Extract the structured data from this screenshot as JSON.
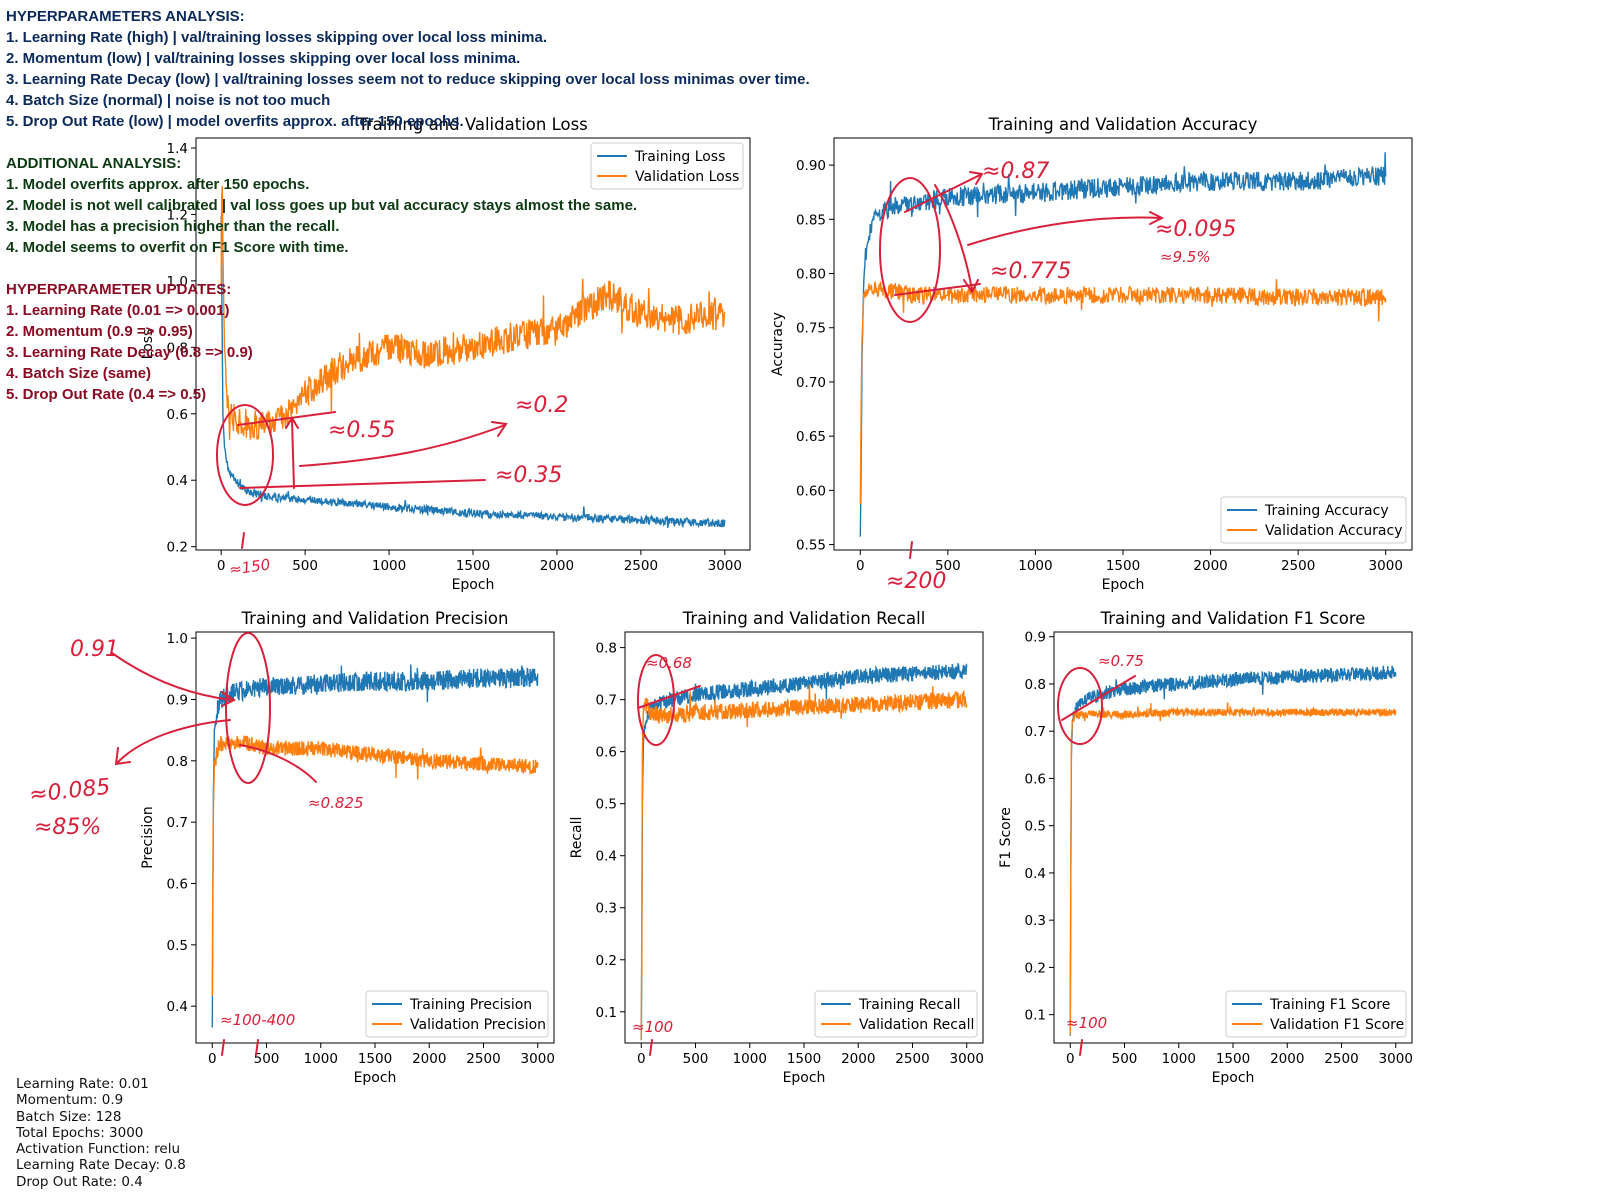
{
  "notes": {
    "analysis": {
      "heading": "HYPERPARAMETERS ANALYSIS:",
      "color": "#0b2a5b",
      "lines": [
        "1. Learning Rate (high) | val/training losses skipping over local loss minima.",
        "2. Momentum (low) | val/training losses skipping over local loss minima.",
        "3. Learning Rate Decay (low) | val/training losses seem not to reduce skipping over local loss minimas over time.",
        "4. Batch Size (normal) | noise is not too much",
        "5. Drop Out Rate (low) | model overfits approx. after 150 epochs."
      ]
    },
    "additional": {
      "heading": "ADDITIONAL ANALYSIS:",
      "color": "#0d3a12",
      "lines": [
        "1. Model overfits approx. after 150 epochs.",
        "2. Model is not well calibrated | val loss goes up but val accuracy stays almost the same.",
        "3. Model has a precision higher than the recall.",
        "4. Model seems to overfit on F1 Score with time."
      ]
    },
    "updates": {
      "heading": "HYPERPARAMETER UPDATES:",
      "color": "#8a0b22",
      "lines": [
        "1. Learning Rate (0.01 => 0.001)",
        "2. Momentum (0.9 => 0.95)",
        "3. Learning Rate Decay (0.8 => 0.9)",
        "4. Batch Size (same)",
        "5. Drop Out Rate (0.4 => 0.5)"
      ]
    }
  },
  "params": [
    "Learning Rate: 0.01",
    "Momentum: 0.9",
    "Batch Size: 128",
    "Total Epochs: 3000",
    "Activation Function: relu",
    "Learning Rate Decay: 0.8",
    "Drop Out Rate: 0.4"
  ],
  "colors": {
    "training": "#1f77b4",
    "validation": "#ff7f0e",
    "annotation": "#d9203a"
  },
  "chart_data": [
    {
      "type": "line",
      "title": "Training and Validation Loss",
      "xlabel": "Epoch",
      "ylabel": "Loss",
      "xlim": [
        -150,
        3150
      ],
      "ylim": [
        0.19,
        1.43
      ],
      "xticks": [
        0,
        500,
        1000,
        1500,
        2000,
        2500,
        3000
      ],
      "yticks": [
        0.2,
        0.4,
        0.6,
        0.8,
        1.0,
        1.2,
        1.4
      ],
      "legend": "upper right",
      "grid": false,
      "series": [
        {
          "name": "Training Loss",
          "x": [
            0,
            5,
            10,
            20,
            40,
            60,
            100,
            150,
            200,
            300,
            500,
            750,
            1000,
            1500,
            2000,
            2500,
            3000
          ],
          "y": [
            1.2,
            0.9,
            0.6,
            0.5,
            0.44,
            0.41,
            0.39,
            0.37,
            0.36,
            0.35,
            0.34,
            0.33,
            0.32,
            0.3,
            0.29,
            0.28,
            0.27
          ],
          "noise": 0.012
        },
        {
          "name": "Validation Loss",
          "x": [
            0,
            5,
            10,
            20,
            40,
            80,
            150,
            250,
            400,
            500,
            700,
            1000,
            1200,
            1500,
            1800,
            2000,
            2200,
            2300,
            2500,
            2700,
            3000
          ],
          "y": [
            1.0,
            1.36,
            1.1,
            0.8,
            0.65,
            0.58,
            0.57,
            0.56,
            0.6,
            0.66,
            0.74,
            0.8,
            0.78,
            0.8,
            0.84,
            0.85,
            0.92,
            0.96,
            0.9,
            0.88,
            0.9
          ],
          "noise": 0.045
        }
      ],
      "annotations": [
        "≈0.55",
        "≈0.2",
        "≈0.35",
        "≈150"
      ]
    },
    {
      "type": "line",
      "title": "Training and Validation Accuracy",
      "xlabel": "Epoch",
      "ylabel": "Accuracy",
      "xlim": [
        -150,
        3150
      ],
      "ylim": [
        0.545,
        0.925
      ],
      "xticks": [
        0,
        500,
        1000,
        1500,
        2000,
        2500,
        3000
      ],
      "yticks": [
        0.55,
        0.6,
        0.65,
        0.7,
        0.75,
        0.8,
        0.85,
        0.9
      ],
      "legend": "lower right",
      "grid": false,
      "series": [
        {
          "name": "Training Accuracy",
          "x": [
            0,
            5,
            10,
            20,
            40,
            80,
            150,
            300,
            500,
            1000,
            1500,
            2000,
            2500,
            3000
          ],
          "y": [
            0.56,
            0.62,
            0.72,
            0.8,
            0.83,
            0.85,
            0.86,
            0.865,
            0.87,
            0.875,
            0.88,
            0.885,
            0.885,
            0.89
          ],
          "noise": 0.009
        },
        {
          "name": "Validation Accuracy",
          "x": [
            0,
            5,
            10,
            20,
            40,
            80,
            150,
            300,
            500,
            1000,
            1500,
            2000,
            2500,
            3000
          ],
          "y": [
            0.59,
            0.68,
            0.74,
            0.78,
            0.785,
            0.785,
            0.785,
            0.78,
            0.78,
            0.78,
            0.78,
            0.78,
            0.778,
            0.778
          ],
          "noise": 0.008
        }
      ],
      "annotations": [
        "≈0.87",
        "≈0.095",
        "≈9.5%",
        "≈0.775",
        "≈200"
      ]
    },
    {
      "type": "line",
      "title": "Training and Validation Precision",
      "xlabel": "Epoch",
      "ylabel": "Precision",
      "xlim": [
        -150,
        3150
      ],
      "ylim": [
        0.34,
        1.01
      ],
      "xticks": [
        0,
        500,
        1000,
        1500,
        2000,
        2500,
        3000
      ],
      "yticks": [
        0.4,
        0.5,
        0.6,
        0.7,
        0.8,
        0.9,
        1.0
      ],
      "legend": "lower right",
      "grid": false,
      "series": [
        {
          "name": "Training Precision",
          "x": [
            0,
            5,
            10,
            20,
            40,
            80,
            150,
            300,
            500,
            1000,
            1500,
            2000,
            2500,
            3000
          ],
          "y": [
            0.37,
            0.55,
            0.75,
            0.85,
            0.88,
            0.9,
            0.91,
            0.915,
            0.92,
            0.925,
            0.93,
            0.93,
            0.935,
            0.935
          ],
          "noise": 0.016
        },
        {
          "name": "Validation Precision",
          "x": [
            0,
            5,
            10,
            20,
            40,
            80,
            150,
            300,
            500,
            1000,
            1500,
            2000,
            2500,
            3000
          ],
          "y": [
            0.42,
            0.6,
            0.72,
            0.8,
            0.815,
            0.825,
            0.83,
            0.83,
            0.82,
            0.82,
            0.81,
            0.8,
            0.795,
            0.79
          ],
          "noise": 0.012
        }
      ],
      "annotations": [
        "0.91",
        "≈0.085",
        "≈85%",
        "≈0.825",
        "≈100-400"
      ]
    },
    {
      "type": "line",
      "title": "Training and Validation Recall",
      "xlabel": "Epoch",
      "ylabel": "Recall",
      "xlim": [
        -150,
        3150
      ],
      "ylim": [
        0.04,
        0.83
      ],
      "xticks": [
        0,
        500,
        1000,
        1500,
        2000,
        2500,
        3000
      ],
      "yticks": [
        0.1,
        0.2,
        0.3,
        0.4,
        0.5,
        0.6,
        0.7,
        0.8
      ],
      "legend": "lower right",
      "grid": false,
      "series": [
        {
          "name": "Training Recall",
          "x": [
            0,
            5,
            10,
            20,
            40,
            80,
            150,
            300,
            500,
            1000,
            1500,
            2000,
            2500,
            3000
          ],
          "y": [
            0.05,
            0.2,
            0.5,
            0.62,
            0.66,
            0.68,
            0.69,
            0.7,
            0.71,
            0.72,
            0.73,
            0.745,
            0.75,
            0.755
          ],
          "noise": 0.015
        },
        {
          "name": "Validation Recall",
          "x": [
            0,
            5,
            10,
            20,
            40,
            80,
            150,
            300,
            500,
            1000,
            1500,
            2000,
            2500,
            3000
          ],
          "y": [
            0.05,
            0.25,
            0.6,
            0.68,
            0.69,
            0.68,
            0.67,
            0.67,
            0.675,
            0.68,
            0.685,
            0.69,
            0.695,
            0.7
          ],
          "noise": 0.016
        }
      ],
      "annotations": [
        "≈0.68",
        "≈100"
      ]
    },
    {
      "type": "line",
      "title": "Training and Validation F1 Score",
      "xlabel": "Epoch",
      "ylabel": "F1 Score",
      "xlim": [
        -150,
        3150
      ],
      "ylim": [
        0.04,
        0.91
      ],
      "xticks": [
        0,
        500,
        1000,
        1500,
        2000,
        2500,
        3000
      ],
      "yticks": [
        0.1,
        0.2,
        0.3,
        0.4,
        0.5,
        0.6,
        0.7,
        0.8,
        0.9
      ],
      "legend": "lower right",
      "grid": false,
      "series": [
        {
          "name": "Training F1 Score",
          "x": [
            0,
            5,
            10,
            20,
            40,
            80,
            150,
            300,
            500,
            1000,
            1500,
            2000,
            2500,
            3000
          ],
          "y": [
            0.06,
            0.4,
            0.65,
            0.72,
            0.74,
            0.76,
            0.77,
            0.78,
            0.79,
            0.8,
            0.81,
            0.815,
            0.82,
            0.825
          ],
          "noise": 0.015
        },
        {
          "name": "Validation F1 Score",
          "x": [
            0,
            5,
            10,
            20,
            40,
            80,
            150,
            300,
            500,
            1000,
            1500,
            2000,
            2500,
            3000
          ],
          "y": [
            0.06,
            0.4,
            0.68,
            0.72,
            0.73,
            0.735,
            0.735,
            0.735,
            0.735,
            0.74,
            0.74,
            0.74,
            0.74,
            0.74
          ],
          "noise": 0.008
        }
      ],
      "annotations": [
        "≈0.75",
        "≈100"
      ]
    }
  ]
}
